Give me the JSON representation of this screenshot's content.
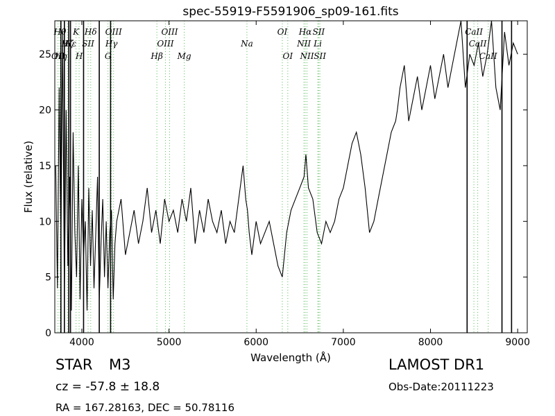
{
  "info": {
    "object_class": "STAR",
    "subclass": "M3",
    "cz_text": "cz = -57.8 ± 18.8",
    "radec_text": "RA = 167.28163, DEC = 50.78116",
    "survey": "LAMOST DR1",
    "obs_date": "Obs-Date:20111223"
  },
  "chart_data": {
    "type": "line",
    "title": "spec-55919-F5591906_sp09-161.fits",
    "xlabel": "Wavelength (Å)",
    "ylabel": "Flux (relative)",
    "xlim": [
      3690,
      9110
    ],
    "ylim": [
      0,
      28
    ],
    "xticks": [
      4000,
      5000,
      6000,
      7000,
      8000,
      9000
    ],
    "yticks": [
      0,
      5,
      10,
      15,
      20,
      25
    ],
    "grid": false,
    "line_color": "#000000",
    "marker_color": "#55bb55",
    "series": [
      {
        "x": [
          3700,
          3720,
          3740,
          3760,
          3780,
          3800,
          3820,
          3840,
          3860,
          3880,
          3900,
          3920,
          3940,
          3960,
          3980,
          4000,
          4020,
          4040,
          4060,
          4080,
          4100,
          4120,
          4140,
          4160,
          4180,
          4200,
          4220,
          4240,
          4260,
          4280,
          4300,
          4320,
          4340,
          4360,
          4380,
          4400,
          4450,
          4500,
          4550,
          4600,
          4650,
          4700,
          4750,
          4800,
          4850,
          4900,
          4950,
          5000,
          5050,
          5100,
          5150,
          5200,
          5250,
          5300,
          5350,
          5400,
          5450,
          5500,
          5550,
          5600,
          5650,
          5700,
          5750,
          5800,
          5850,
          5880,
          5900,
          5920,
          5950,
          6000,
          6050,
          6100,
          6150,
          6200,
          6250,
          6300,
          6350,
          6400,
          6450,
          6500,
          6550,
          6570,
          6600,
          6650,
          6700,
          6750,
          6800,
          6850,
          6900,
          6950,
          7000,
          7050,
          7100,
          7150,
          7200,
          7250,
          7300,
          7350,
          7400,
          7450,
          7500,
          7550,
          7600,
          7620,
          7650,
          7700,
          7750,
          7800,
          7850,
          7900,
          7950,
          8000,
          8050,
          8100,
          8150,
          8200,
          8250,
          8300,
          8350,
          8400,
          8450,
          8500,
          8550,
          8600,
          8650,
          8700,
          8750,
          8800,
          8850,
          8900,
          8950,
          9000
        ],
        "y": [
          15,
          4,
          22,
          8,
          27,
          3,
          20,
          6,
          14,
          2,
          18,
          9,
          5,
          15,
          3,
          12,
          7,
          10,
          2,
          13,
          6,
          11,
          4,
          9,
          14,
          3,
          8,
          12,
          5,
          10,
          4,
          9,
          11,
          3,
          8,
          10,
          12,
          7,
          9,
          11,
          8,
          10,
          13,
          9,
          11,
          8,
          12,
          10,
          11,
          9,
          12,
          10,
          13,
          8,
          11,
          9,
          12,
          10,
          9,
          11,
          8,
          10,
          9,
          12,
          15,
          12,
          11,
          9,
          7,
          10,
          8,
          9,
          10,
          8,
          6,
          5,
          9,
          11,
          12,
          13,
          14,
          16,
          13,
          12,
          9,
          8,
          10,
          9,
          10,
          12,
          13,
          15,
          17,
          18,
          16,
          13,
          9,
          10,
          12,
          14,
          16,
          18,
          19,
          20,
          22,
          24,
          19,
          21,
          23,
          20,
          22,
          24,
          21,
          23,
          25,
          22,
          24,
          26,
          28,
          22,
          25,
          24,
          26,
          23,
          25,
          28,
          22,
          20,
          27,
          24,
          26,
          25
        ],
        "gaps": [
          8650,
          8930
        ],
        "drops": [
          3760,
          3800,
          3850,
          3870,
          4020,
          4200,
          4330,
          8420,
          8820,
          8930
        ]
      }
    ],
    "line_markers": [
      {
        "x": 3727,
        "label": "OII",
        "row": 2
      },
      {
        "x": 3750,
        "label": "Hθ",
        "row": 0
      },
      {
        "x": 3760,
        "label": "Hη",
        "row": 2
      },
      {
        "x": 3835,
        "label": "Hζ",
        "row": 1
      },
      {
        "x": 3870,
        "label": "Hε",
        "row": 1
      },
      {
        "x": 3934,
        "label": "K",
        "row": 0
      },
      {
        "x": 3969,
        "label": "H",
        "row": 2
      },
      {
        "x": 4072,
        "label": "SII",
        "row": 1
      },
      {
        "x": 4102,
        "label": "Hδ",
        "row": 0
      },
      {
        "x": 4300,
        "label": "G",
        "row": 2
      },
      {
        "x": 4340,
        "label": "Hγ",
        "row": 1
      },
      {
        "x": 4364,
        "label": "OIII",
        "row": 0
      },
      {
        "x": 4861,
        "label": "Hβ",
        "row": 2
      },
      {
        "x": 4959,
        "label": "OIII",
        "row": 1
      },
      {
        "x": 5007,
        "label": "OIII",
        "row": 0
      },
      {
        "x": 5175,
        "label": "Mg",
        "row": 2
      },
      {
        "x": 5894,
        "label": "Na",
        "row": 1
      },
      {
        "x": 6300,
        "label": "OI",
        "row": 0
      },
      {
        "x": 6363,
        "label": "OI",
        "row": 2
      },
      {
        "x": 6548,
        "label": "NII",
        "row": 1
      },
      {
        "x": 6563,
        "label": "Hα",
        "row": 0
      },
      {
        "x": 6583,
        "label": "NII",
        "row": 2
      },
      {
        "x": 6707,
        "label": "Li",
        "row": 1
      },
      {
        "x": 6717,
        "label": "SII",
        "row": 0
      },
      {
        "x": 6731,
        "label": "SII",
        "row": 2
      },
      {
        "x": 8498,
        "label": "CaII",
        "row": 0
      },
      {
        "x": 8542,
        "label": "CaII",
        "row": 1
      },
      {
        "x": 8662,
        "label": "CaII",
        "row": 2
      }
    ]
  }
}
